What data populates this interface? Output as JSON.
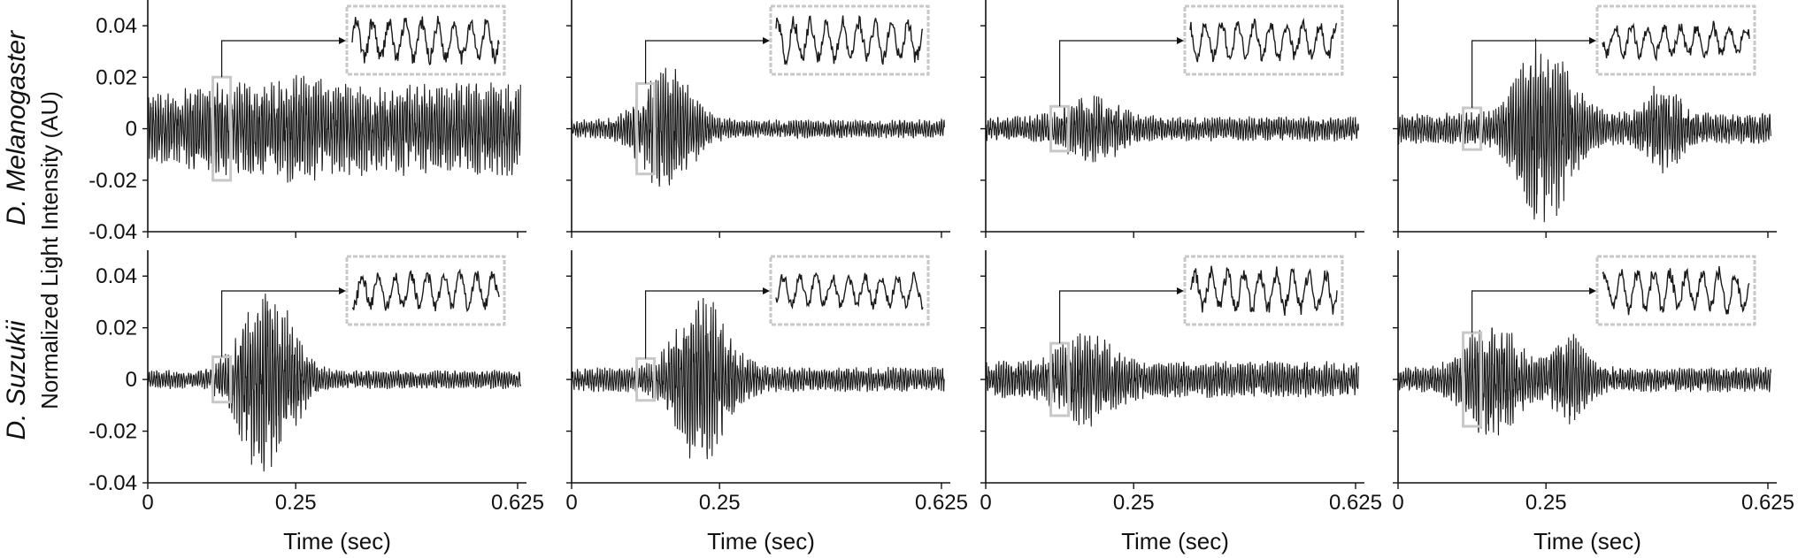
{
  "figure": {
    "ylabel": "Normalized Light Intensity (AU)",
    "row_labels": [
      "D. Melanogaster",
      "D. Suzukii"
    ]
  },
  "chart_data": [
    {
      "type": "line",
      "row": 0,
      "col": 0,
      "species": "D. Melanogaster",
      "xlabel": "Time (sec)",
      "ylabel": "Normalized Light Intensity (AU)",
      "xlim": [
        0,
        0.64
      ],
      "ylim": [
        -0.04,
        0.05
      ],
      "xticks": [
        0,
        0.25,
        0.625
      ],
      "xtick_labels": [
        "0",
        "0.25",
        "0.625"
      ],
      "yticks": [
        -0.04,
        -0.02,
        0,
        0.02,
        0.04
      ],
      "ytick_labels": [
        "-0.04",
        "-0.02",
        "0",
        "0.02",
        "0.04"
      ],
      "shape": "sustained",
      "peak_time": 0.26,
      "peak_amplitude": 0.018,
      "baseline_amplitude": 0.011,
      "zoom_window": [
        0.11,
        0.14
      ]
    },
    {
      "type": "line",
      "row": 0,
      "col": 1,
      "species": "D. Melanogaster",
      "xlabel": "Time (sec)",
      "xlim": [
        0,
        0.64
      ],
      "ylim": [
        -0.04,
        0.05
      ],
      "xticks": [
        0,
        0.25,
        0.625
      ],
      "xtick_labels": [
        "0",
        "0.25",
        "0.625"
      ],
      "yticks": [
        -0.04,
        -0.02,
        0,
        0.02,
        0.04
      ],
      "shape": "burst",
      "peak_time": 0.16,
      "peak_amplitude": 0.02,
      "baseline_amplitude": 0.003,
      "zoom_window": [
        0.11,
        0.14
      ]
    },
    {
      "type": "line",
      "row": 0,
      "col": 2,
      "species": "D. Melanogaster",
      "xlabel": "Time (sec)",
      "xlim": [
        0,
        0.64
      ],
      "ylim": [
        -0.04,
        0.05
      ],
      "xticks": [
        0,
        0.25,
        0.625
      ],
      "xtick_labels": [
        "0",
        "0.25",
        "0.625"
      ],
      "yticks": [
        -0.04,
        -0.02,
        0,
        0.02,
        0.04
      ],
      "shape": "burst",
      "peak_time": 0.18,
      "peak_amplitude": 0.012,
      "baseline_amplitude": 0.004,
      "zoom_window": [
        0.11,
        0.14
      ]
    },
    {
      "type": "line",
      "row": 0,
      "col": 3,
      "species": "D. Melanogaster",
      "xlabel": "Time (sec)",
      "xlim": [
        0,
        0.64
      ],
      "ylim": [
        -0.04,
        0.05
      ],
      "xticks": [
        0,
        0.25,
        0.625
      ],
      "xtick_labels": [
        "0",
        "0.25",
        "0.625"
      ],
      "yticks": [
        -0.04,
        -0.02,
        0,
        0.02,
        0.04
      ],
      "shape": "double",
      "peak_time": 0.25,
      "peak_amplitude": 0.033,
      "second_peak_time": 0.45,
      "second_peak_amplitude": 0.016,
      "baseline_amplitude": 0.005,
      "zoom_window": [
        0.11,
        0.14
      ]
    },
    {
      "type": "line",
      "row": 1,
      "col": 0,
      "species": "D. Suzukii",
      "xlabel": "Time (sec)",
      "ylabel": "Normalized Light Intensity (AU)",
      "xlim": [
        0,
        0.64
      ],
      "ylim": [
        -0.04,
        0.05
      ],
      "xticks": [
        0,
        0.25,
        0.625
      ],
      "xtick_labels": [
        "0",
        "0.25",
        "0.625"
      ],
      "yticks": [
        -0.04,
        -0.02,
        0,
        0.02,
        0.04
      ],
      "ytick_labels": [
        "-0.04",
        "-0.02",
        "0",
        "0.02",
        "0.04"
      ],
      "shape": "burst",
      "peak_time": 0.2,
      "peak_amplitude": 0.032,
      "baseline_amplitude": 0.003,
      "zoom_window": [
        0.11,
        0.14
      ]
    },
    {
      "type": "line",
      "row": 1,
      "col": 1,
      "species": "D. Suzukii",
      "xlabel": "Time (sec)",
      "xlim": [
        0,
        0.64
      ],
      "ylim": [
        -0.04,
        0.05
      ],
      "xticks": [
        0,
        0.25,
        0.625
      ],
      "xtick_labels": [
        "0",
        "0.25",
        "0.625"
      ],
      "yticks": [
        -0.04,
        -0.02,
        0,
        0.02,
        0.04
      ],
      "shape": "burst",
      "peak_time": 0.22,
      "peak_amplitude": 0.028,
      "baseline_amplitude": 0.004,
      "zoom_window": [
        0.11,
        0.14
      ]
    },
    {
      "type": "line",
      "row": 1,
      "col": 2,
      "species": "D. Suzukii",
      "xlabel": "Time (sec)",
      "xlim": [
        0,
        0.64
      ],
      "ylim": [
        -0.04,
        0.05
      ],
      "xticks": [
        0,
        0.25,
        0.625
      ],
      "xtick_labels": [
        "0",
        "0.25",
        "0.625"
      ],
      "yticks": [
        -0.04,
        -0.02,
        0,
        0.02,
        0.04
      ],
      "shape": "burst",
      "peak_time": 0.17,
      "peak_amplitude": 0.016,
      "baseline_amplitude": 0.006,
      "zoom_window": [
        0.11,
        0.14
      ]
    },
    {
      "type": "line",
      "row": 1,
      "col": 3,
      "species": "D. Suzukii",
      "xlabel": "Time (sec)",
      "xlim": [
        0,
        0.64
      ],
      "ylim": [
        -0.04,
        0.05
      ],
      "xticks": [
        0,
        0.25,
        0.625
      ],
      "xtick_labels": [
        "0",
        "0.25",
        "0.625"
      ],
      "yticks": [
        -0.04,
        -0.02,
        0,
        0.02,
        0.04
      ],
      "shape": "double",
      "peak_time": 0.16,
      "peak_amplitude": 0.02,
      "second_peak_time": 0.29,
      "second_peak_amplitude": 0.016,
      "baseline_amplitude": 0.004,
      "zoom_window": [
        0.11,
        0.14
      ]
    }
  ]
}
